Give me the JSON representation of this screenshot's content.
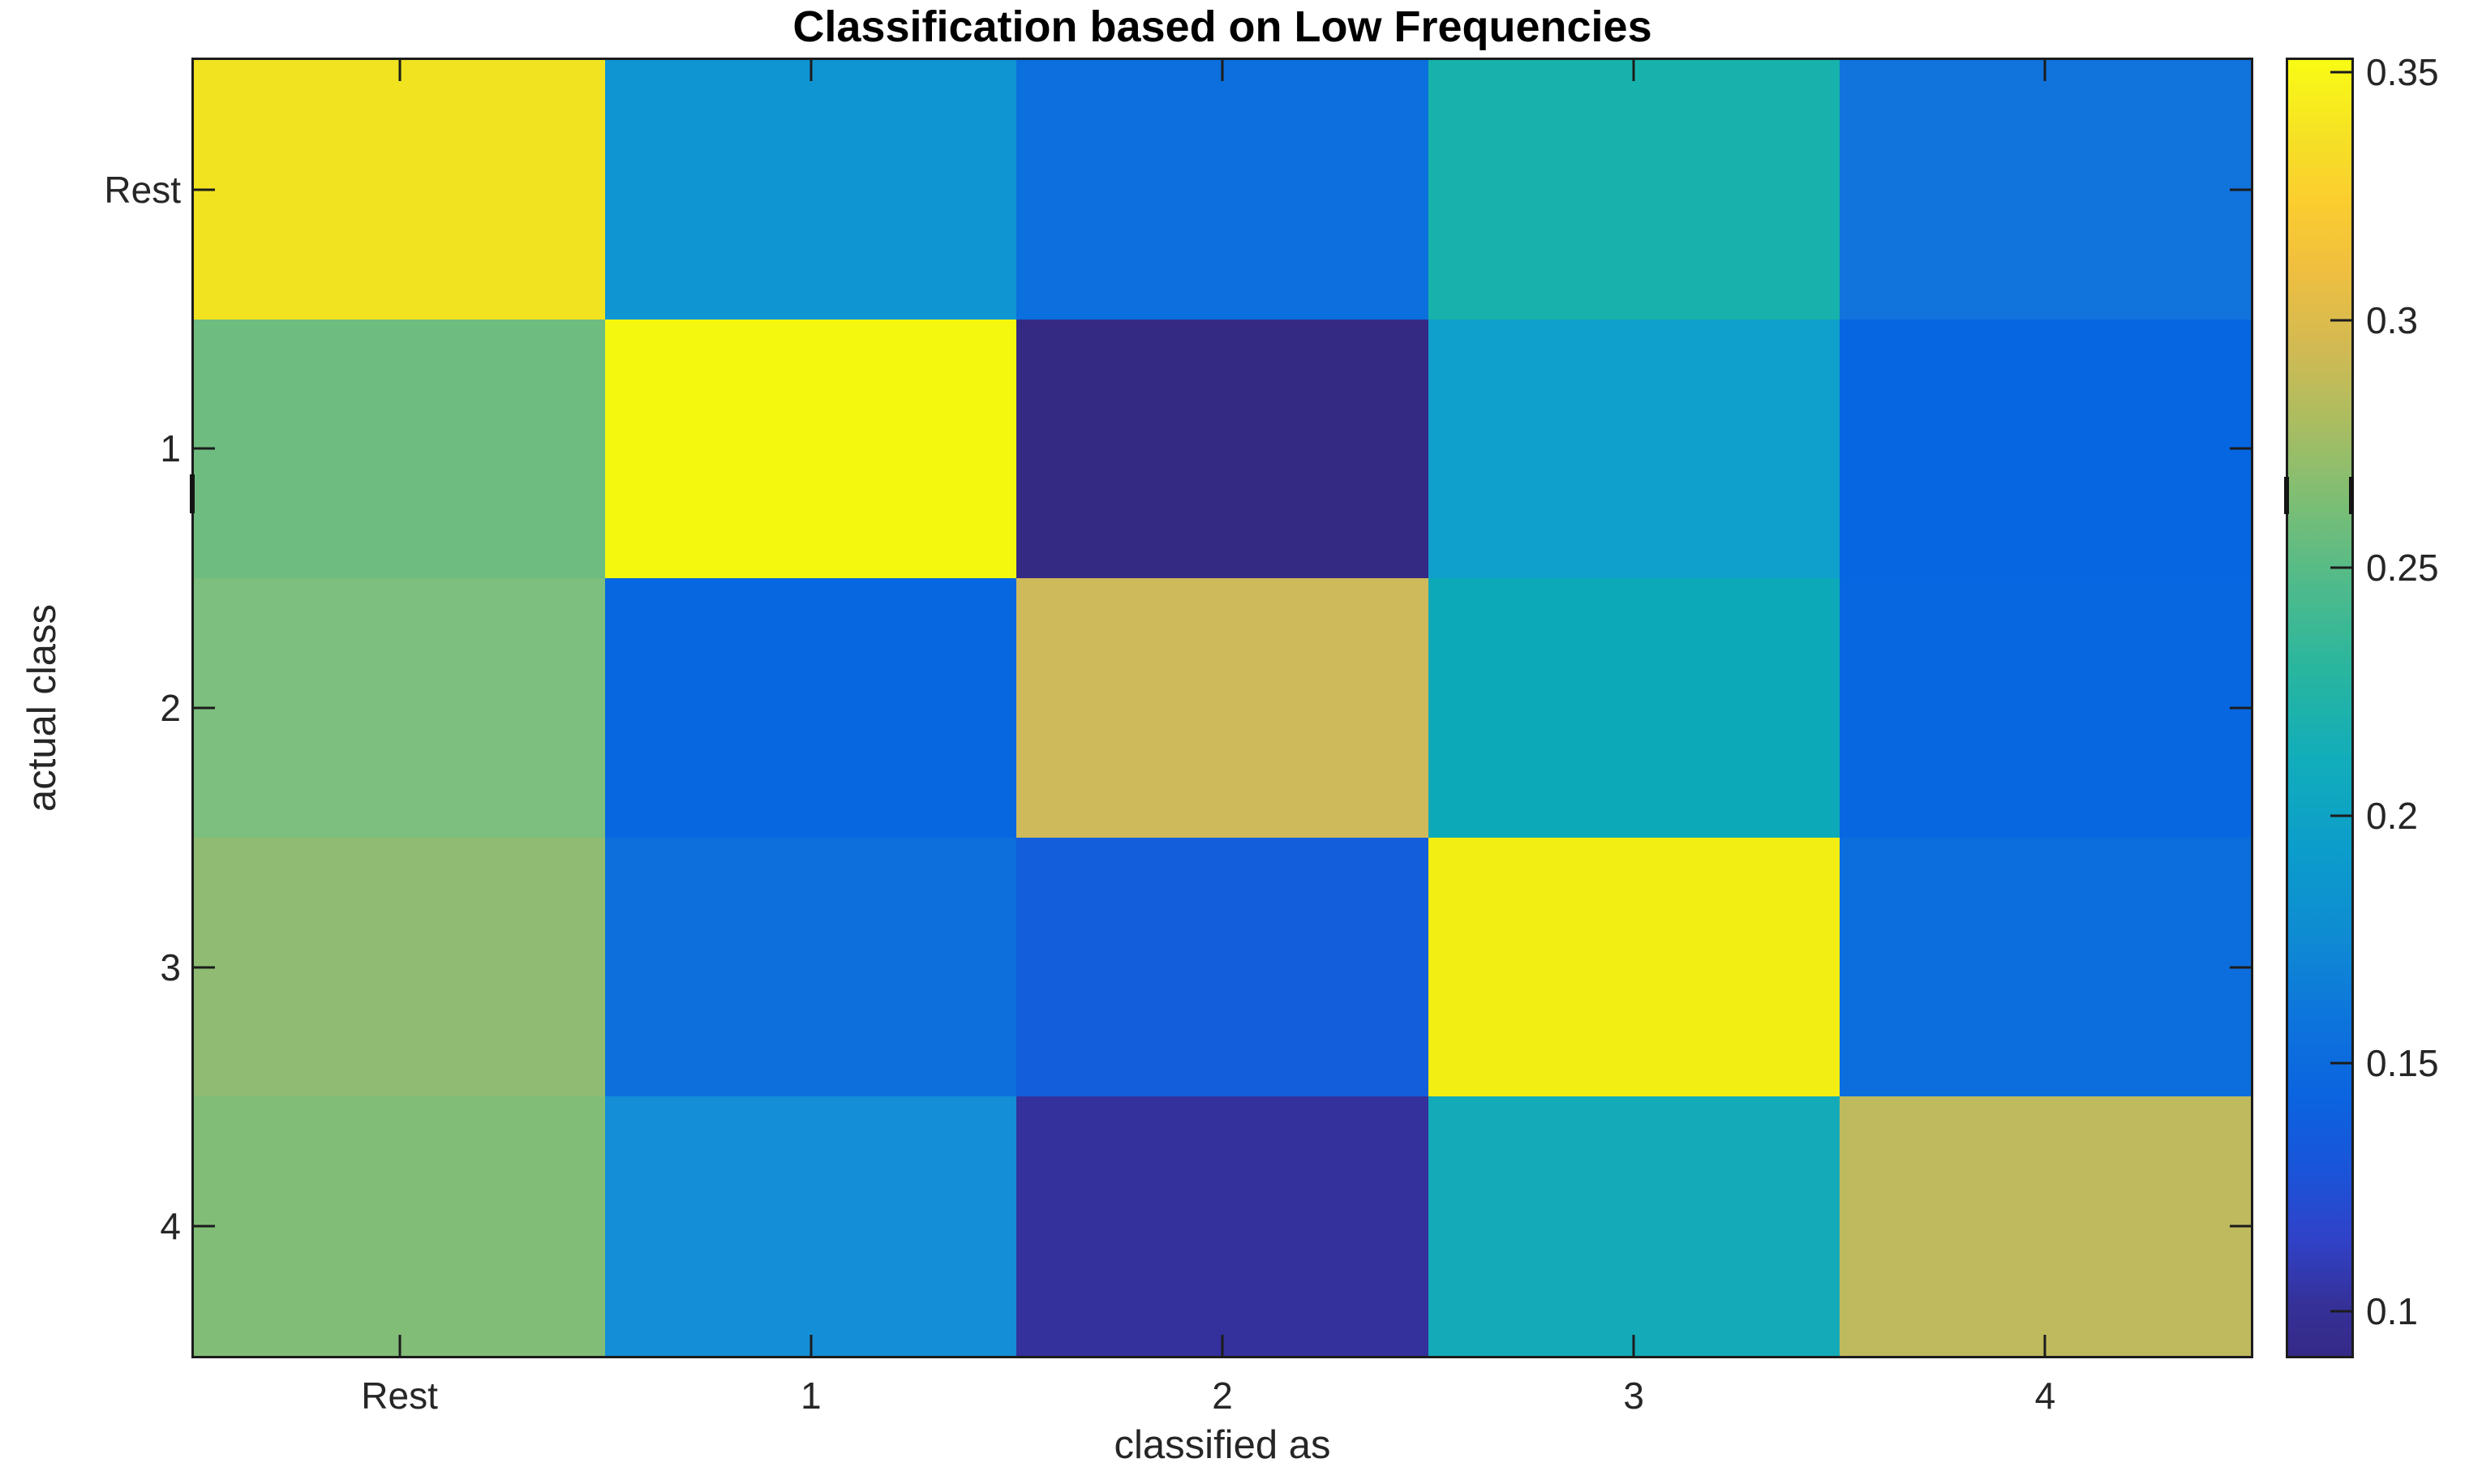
{
  "figure": {
    "title": "Classification based on Low Frequencies",
    "x_axis": {
      "label": "classified as",
      "tick_labels": [
        "Rest",
        "1",
        "2",
        "3",
        "4"
      ]
    },
    "y_axis": {
      "label": "actual class",
      "tick_labels": [
        "Rest",
        "1",
        "2",
        "3",
        "4"
      ]
    },
    "colorbar": {
      "tick_labels": [
        "0.35",
        "0.3",
        "0.25",
        "0.2",
        "0.15",
        "0.1"
      ]
    }
  },
  "chart_data": {
    "type": "heatmap",
    "title": "Classification based on Low Frequencies",
    "xlabel": "classified as",
    "ylabel": "actual class",
    "x_categories": [
      "Rest",
      "1",
      "2",
      "3",
      "4"
    ],
    "y_categories": [
      "Rest",
      "1",
      "2",
      "3",
      "4"
    ],
    "values": [
      [
        0.331,
        0.177,
        0.15,
        0.213,
        0.152
      ],
      [
        0.253,
        0.352,
        0.091,
        0.189,
        0.142
      ],
      [
        0.257,
        0.142,
        0.291,
        0.202,
        0.142
      ],
      [
        0.265,
        0.151,
        0.134,
        0.343,
        0.15
      ],
      [
        0.26,
        0.171,
        0.103,
        0.203,
        0.281
      ]
    ],
    "cell_colors": [
      [
        "#f1e320",
        "#1095d3",
        "#0b6fdd",
        "#17b2ab",
        "#1173dc"
      ],
      [
        "#6fbc80",
        "#f3f80e",
        "#352a83",
        "#0fa0cc",
        "#0566e1"
      ],
      [
        "#7cbf7e",
        "#0667e1",
        "#cfba5b",
        "#0caab9",
        "#0667e1"
      ],
      [
        "#8fbc72",
        "#0c70dc",
        "#125edb",
        "#f2ee13",
        "#0c6edd"
      ],
      [
        "#81bd77",
        "#148ed6",
        "#34309c",
        "#14abb8",
        "#bfba5e"
      ]
    ],
    "color_scale": {
      "colormap": "parula",
      "vmin": 0.091,
      "vmax": 0.3525,
      "ticks": [
        0.35,
        0.3,
        0.25,
        0.2,
        0.15,
        0.1
      ],
      "tick_labels": [
        "0.35",
        "0.3",
        "0.25",
        "0.2",
        "0.15",
        "0.1"
      ],
      "gradient_stops": [
        {
          "t": 0.0,
          "color": "#352a87"
        },
        {
          "t": 0.04,
          "color": "#353199"
        },
        {
          "t": 0.09,
          "color": "#3042c8"
        },
        {
          "t": 0.14,
          "color": "#1b53d8"
        },
        {
          "t": 0.2,
          "color": "#0b64e0"
        },
        {
          "t": 0.26,
          "color": "#0d74dc"
        },
        {
          "t": 0.32,
          "color": "#0f8ad3"
        },
        {
          "t": 0.39,
          "color": "#0b9dcb"
        },
        {
          "t": 0.46,
          "color": "#12adbb"
        },
        {
          "t": 0.53,
          "color": "#29b69f"
        },
        {
          "t": 0.6,
          "color": "#52bb89"
        },
        {
          "t": 0.66,
          "color": "#7dbe74"
        },
        {
          "t": 0.72,
          "color": "#aabd61"
        },
        {
          "t": 0.78,
          "color": "#d3ba52"
        },
        {
          "t": 0.84,
          "color": "#f0bf3f"
        },
        {
          "t": 0.89,
          "color": "#fbcd2f"
        },
        {
          "t": 0.94,
          "color": "#f6e125"
        },
        {
          "t": 1.0,
          "color": "#f9fb14"
        }
      ]
    },
    "grid": false,
    "legend_position": "colorbar-right"
  },
  "colors": {
    "background": "#ffffff",
    "axis_line": "#1c1c1c",
    "axis_text": "#262626",
    "title_text": "#000000"
  }
}
